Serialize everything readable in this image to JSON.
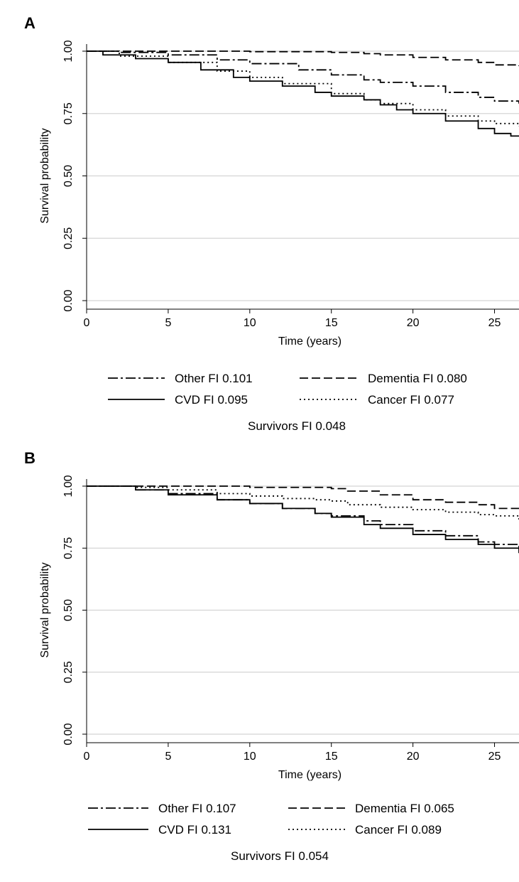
{
  "chart_data": [
    {
      "panel_label": "A",
      "type": "line",
      "xlabel": "Time (years)",
      "ylabel": "Survival probability",
      "xlim": [
        0,
        26.5
      ],
      "ylim": [
        0,
        1
      ],
      "x_ticks": [
        "0",
        "5",
        "10",
        "15",
        "20",
        "25"
      ],
      "y_ticks": [
        "0.00",
        "0.25",
        "0.50",
        "0.75",
        "1.00"
      ],
      "grid": "horizontal",
      "series": [
        {
          "key": "other",
          "style": "dashdot",
          "x": [
            0,
            2,
            5,
            8,
            10,
            13,
            15,
            17,
            18,
            20,
            22,
            24,
            25,
            26.5
          ],
          "y": [
            1.0,
            0.995,
            0.985,
            0.965,
            0.95,
            0.925,
            0.905,
            0.885,
            0.875,
            0.86,
            0.835,
            0.815,
            0.8,
            0.79
          ]
        },
        {
          "key": "dementia",
          "style": "dashed",
          "x": [
            0,
            5,
            10,
            15,
            17,
            18,
            20,
            22,
            24,
            25,
            26.5
          ],
          "y": [
            1.0,
            1.0,
            0.998,
            0.995,
            0.99,
            0.985,
            0.975,
            0.965,
            0.955,
            0.945,
            0.94
          ]
        },
        {
          "key": "cvd",
          "style": "solid",
          "x": [
            0,
            1,
            3,
            5,
            7,
            9,
            10,
            12,
            14,
            15,
            17,
            18,
            19,
            20,
            22,
            24,
            25,
            26,
            26.5
          ],
          "y": [
            1.0,
            0.985,
            0.97,
            0.955,
            0.925,
            0.895,
            0.88,
            0.86,
            0.835,
            0.82,
            0.805,
            0.785,
            0.765,
            0.75,
            0.72,
            0.69,
            0.67,
            0.66,
            0.66
          ]
        },
        {
          "key": "cancer",
          "style": "dotted",
          "x": [
            0,
            2,
            5,
            8,
            10,
            12,
            15,
            17,
            18,
            20,
            22,
            24,
            25,
            26.5
          ],
          "y": [
            1.0,
            0.98,
            0.955,
            0.92,
            0.895,
            0.87,
            0.83,
            0.805,
            0.79,
            0.765,
            0.74,
            0.72,
            0.71,
            0.7
          ]
        }
      ],
      "legend": [
        {
          "key": "other",
          "style": "dashdot",
          "label": "Other FI 0.101"
        },
        {
          "key": "dementia",
          "style": "dashed",
          "label": "Dementia FI 0.080"
        },
        {
          "key": "cvd",
          "style": "solid",
          "label": "CVD  FI 0.095"
        },
        {
          "key": "cancer",
          "style": "dotted",
          "label": "Cancer     FI 0.077"
        }
      ],
      "note": "Survivors  FI 0.048"
    },
    {
      "panel_label": "B",
      "type": "line",
      "xlabel": "Time (years)",
      "ylabel": "Survival probability",
      "xlim": [
        0,
        26.5
      ],
      "ylim": [
        0,
        1
      ],
      "x_ticks": [
        "0",
        "5",
        "10",
        "15",
        "20",
        "25"
      ],
      "y_ticks": [
        "0.00",
        "0.25",
        "0.50",
        "0.75",
        "1.00"
      ],
      "grid": "horizontal",
      "series": [
        {
          "key": "other",
          "style": "dashdot",
          "x": [
            0,
            3,
            5,
            8,
            10,
            12,
            14,
            15,
            17,
            18,
            20,
            22,
            24,
            25,
            26.5
          ],
          "y": [
            1.0,
            0.985,
            0.97,
            0.945,
            0.93,
            0.91,
            0.89,
            0.88,
            0.86,
            0.845,
            0.82,
            0.8,
            0.775,
            0.765,
            0.75
          ]
        },
        {
          "key": "dementia",
          "style": "dashed",
          "x": [
            0,
            5,
            10,
            15,
            16,
            18,
            20,
            22,
            24,
            25,
            26.5
          ],
          "y": [
            1.0,
            1.0,
            0.995,
            0.99,
            0.98,
            0.965,
            0.945,
            0.935,
            0.925,
            0.91,
            0.895
          ]
        },
        {
          "key": "cvd",
          "style": "solid",
          "x": [
            0,
            3,
            5,
            8,
            10,
            12,
            14,
            15,
            17,
            18,
            20,
            22,
            24,
            25,
            26.5
          ],
          "y": [
            1.0,
            0.985,
            0.965,
            0.945,
            0.93,
            0.91,
            0.89,
            0.875,
            0.845,
            0.83,
            0.805,
            0.785,
            0.765,
            0.75,
            0.73
          ]
        },
        {
          "key": "cancer",
          "style": "dotted",
          "x": [
            0,
            3,
            5,
            8,
            10,
            12,
            14,
            15,
            16,
            18,
            20,
            22,
            24,
            25,
            26.5
          ],
          "y": [
            1.0,
            0.995,
            0.985,
            0.97,
            0.96,
            0.95,
            0.945,
            0.94,
            0.925,
            0.915,
            0.905,
            0.895,
            0.885,
            0.88,
            0.865
          ]
        }
      ],
      "legend": [
        {
          "key": "other",
          "style": "dashdot",
          "label": "Other  FI 0.107"
        },
        {
          "key": "dementia",
          "style": "dashed",
          "label": "Dementia FI 0.065"
        },
        {
          "key": "cvd",
          "style": "solid",
          "label": "CVD   FI 0.131"
        },
        {
          "key": "cancer",
          "style": "dotted",
          "label": "Cancer   FI 0.089"
        }
      ],
      "note": "Survivors FI 0.054"
    }
  ]
}
